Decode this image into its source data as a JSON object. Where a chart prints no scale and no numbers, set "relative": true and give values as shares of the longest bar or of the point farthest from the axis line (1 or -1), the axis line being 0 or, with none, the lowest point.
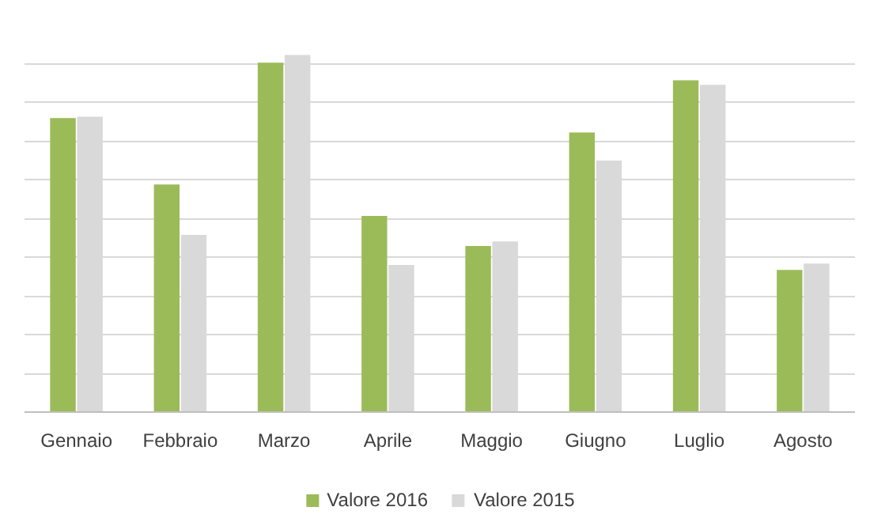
{
  "chart_data": {
    "type": "bar",
    "relative": true,
    "grid": "y",
    "legend": "bottom",
    "categories": [
      "Gennaio",
      "Febbraio",
      "Marzo",
      "Aprile",
      "Maggio",
      "Giugno",
      "Luglio",
      "Agosto"
    ],
    "series": [
      {
        "name": "Valore 2016",
        "color": "#9bbb59",
        "values": [
          0.823,
          0.637,
          0.978,
          0.549,
          0.465,
          0.783,
          0.929,
          0.398
        ]
      },
      {
        "name": "Valore 2015",
        "color": "#d9d9d9",
        "values": [
          0.827,
          0.496,
          1,
          0.412,
          0.478,
          0.704,
          0.916,
          0.416
        ]
      }
    ]
  }
}
